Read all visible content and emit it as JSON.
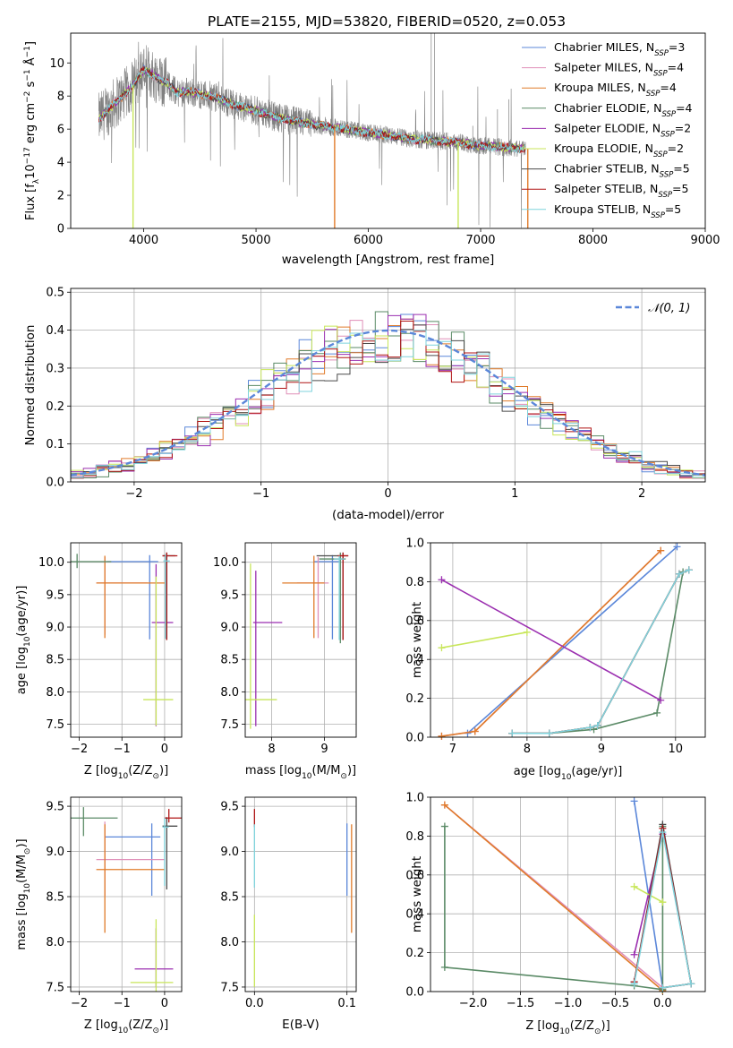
{
  "figure": {
    "title": "PLATE=2155, MJD=53820, FIBERID=0520, z=0.053"
  },
  "colors": {
    "Chabrier MILES": "#5b87d9",
    "Salpeter MILES": "#e08fb8",
    "Kroupa MILES": "#e07b2a",
    "Chabrier ELODIE": "#5a8a66",
    "Salpeter ELODIE": "#9b2fb0",
    "Kroupa ELODIE": "#c8e65a",
    "Chabrier STELIB": "#4a4a4a",
    "Salpeter STELIB": "#b01515",
    "Kroupa STELIB": "#7fd3dc",
    "data": "#808080"
  },
  "chart_data": [
    {
      "id": "spectrum",
      "type": "line",
      "xlabel": "wavelength [Angstrom, rest frame]",
      "ylabel_parts": [
        "Flux [f",
        "λ",
        "10",
        "−17",
        " erg cm",
        "−2",
        " s",
        "−1",
        " Å",
        "−1",
        "]"
      ],
      "xlim": [
        3350,
        9000
      ],
      "ylim": [
        0,
        11.8
      ],
      "xticks": [
        4000,
        5000,
        6000,
        7000,
        8000,
        9000
      ],
      "yticks": [
        0,
        2,
        4,
        6,
        8,
        10
      ],
      "grid": false,
      "legend_position": "top-right",
      "series": [
        {
          "name": "Chabrier MILES",
          "sub": "SSP",
          "n": 3
        },
        {
          "name": "Salpeter MILES",
          "sub": "SSP",
          "n": 4
        },
        {
          "name": "Kroupa MILES",
          "sub": "SSP",
          "n": 4
        },
        {
          "name": "Chabrier ELODIE",
          "sub": "SSP",
          "n": 4
        },
        {
          "name": "Salpeter ELODIE",
          "sub": "SSP",
          "n": 2
        },
        {
          "name": "Kroupa ELODIE",
          "sub": "SSP",
          "n": 2
        },
        {
          "name": "Chabrier STELIB",
          "sub": "SSP",
          "n": 5
        },
        {
          "name": "Salpeter STELIB",
          "sub": "SSP",
          "n": 5
        },
        {
          "name": "Kroupa STELIB",
          "sub": "SSP",
          "n": 5
        }
      ],
      "continuum": {
        "x": [
          3600,
          3700,
          3800,
          3900,
          4000,
          4100,
          4200,
          4300,
          4400,
          4500,
          4600,
          4800,
          5000,
          5200,
          5400,
          5600,
          5800,
          6000,
          6200,
          6400,
          6600,
          6800,
          7000,
          7200,
          7400
        ],
        "y": [
          6.6,
          7.3,
          7.9,
          8.6,
          9.6,
          9.2,
          8.8,
          8.2,
          8.3,
          8.1,
          8.0,
          7.5,
          7.1,
          6.7,
          6.4,
          6.2,
          6.0,
          5.8,
          5.6,
          5.4,
          5.3,
          5.2,
          5.0,
          4.9,
          4.8
        ]
      },
      "dropouts": [
        {
          "x": 3905,
          "series": "Kroupa ELODIE"
        },
        {
          "x": 5700,
          "series": "Kroupa MILES"
        },
        {
          "x": 6800,
          "series": "Kroupa ELODIE"
        },
        {
          "x": 7420,
          "series": "Kroupa MILES"
        }
      ]
    },
    {
      "id": "residuals",
      "type": "histogram",
      "xlabel": "(data-model)/error",
      "ylabel": "Normed distribution",
      "xlim": [
        -2.5,
        2.5
      ],
      "ylim": [
        0,
        0.51
      ],
      "xticks": [
        -2,
        -1,
        0,
        1,
        2
      ],
      "yticks": [
        0.0,
        0.1,
        0.2,
        0.3,
        0.4,
        0.5
      ],
      "grid": true,
      "legend_position": "top-right",
      "reference": {
        "name": "𝒩(0, 1)",
        "mean": 0,
        "sigma": 1
      },
      "bin_width": 0.1,
      "bin_start": -2.5
    },
    {
      "id": "age-vs-Z",
      "type": "scatter",
      "xlabel_parts": [
        "Z [log",
        "10",
        "(Z/Z",
        "⊙",
        ")]"
      ],
      "ylabel_parts": [
        "age  [log",
        "10",
        "(age/yr)]"
      ],
      "xlim": [
        -2.2,
        0.4
      ],
      "ylim": [
        7.3,
        10.3
      ],
      "xticks": [
        -2,
        -1,
        0
      ],
      "yticks": [
        7.5,
        8.0,
        8.5,
        9.0,
        9.5,
        10.0
      ],
      "grid": true,
      "points": [
        {
          "series": "Chabrier MILES",
          "x": -0.35,
          "y": 10.01,
          "xerr": [
            1.0,
            0.2
          ],
          "yerr": [
            1.2,
            0.1
          ]
        },
        {
          "series": "Salpeter MILES",
          "x": -1.4,
          "y": 9.68,
          "xerr": [
            0.2,
            1.0
          ],
          "yerr": [
            0.8,
            0.4
          ]
        },
        {
          "series": "Kroupa MILES",
          "x": -1.4,
          "y": 9.68,
          "xerr": [
            0.2,
            1.4
          ],
          "yerr": [
            0.85,
            0.42
          ]
        },
        {
          "series": "Chabrier ELODIE",
          "x": -2.05,
          "y": 10.01,
          "xerr": [
            0.2,
            0.8
          ],
          "yerr": [
            0.1,
            0.12
          ]
        },
        {
          "series": "Salpeter ELODIE",
          "x": -0.2,
          "y": 9.07,
          "xerr": [
            0.1,
            0.4
          ],
          "yerr": [
            1.6,
            0.9
          ]
        },
        {
          "series": "Kroupa ELODIE",
          "x": -0.2,
          "y": 7.88,
          "xerr": [
            0.3,
            0.4
          ],
          "yerr": [
            0.4,
            1.9
          ]
        },
        {
          "series": "Chabrier STELIB",
          "x": 0.05,
          "y": 10.1,
          "xerr": [
            0.1,
            0.2
          ],
          "yerr": [
            1.3,
            0.05
          ]
        },
        {
          "series": "Salpeter STELIB",
          "x": 0.05,
          "y": 10.1,
          "xerr": [
            0.1,
            0.25
          ],
          "yerr": [
            1.3,
            0.05
          ]
        },
        {
          "series": "Kroupa STELIB",
          "x": 0.02,
          "y": 10.02,
          "xerr": [
            0.05,
            0.1
          ],
          "yerr": [
            1.2,
            0.1
          ]
        }
      ]
    },
    {
      "id": "age-vs-mass",
      "type": "scatter",
      "xlabel_parts": [
        "mass [log",
        "10",
        "(M/M",
        "⊙",
        ")]"
      ],
      "xlim": [
        7.5,
        9.6
      ],
      "ylim": [
        7.3,
        10.3
      ],
      "xticks": [
        8,
        9
      ],
      "yticks": [
        7.5,
        8.0,
        8.5,
        9.0,
        9.5,
        10.0
      ],
      "grid": true,
      "points": [
        {
          "series": "Chabrier MILES",
          "x": 9.15,
          "y": 10.01,
          "xerr": [
            0.35,
            0.15
          ],
          "yerr": [
            1.2,
            0.1
          ]
        },
        {
          "series": "Salpeter MILES",
          "x": 8.88,
          "y": 9.68,
          "xerr": [
            0.4,
            0.2
          ],
          "yerr": [
            0.85,
            0.4
          ]
        },
        {
          "series": "Kroupa MILES",
          "x": 8.8,
          "y": 9.68,
          "xerr": [
            0.6,
            0.2
          ],
          "yerr": [
            0.85,
            0.42
          ]
        },
        {
          "series": "Chabrier ELODIE",
          "x": 9.3,
          "y": 10.05,
          "xerr": [
            0.4,
            0.1
          ],
          "yerr": [
            1.3,
            0.1
          ]
        },
        {
          "series": "Salpeter ELODIE",
          "x": 7.7,
          "y": 9.07,
          "xerr": [
            0.05,
            0.5
          ],
          "yerr": [
            1.6,
            0.8
          ]
        },
        {
          "series": "Kroupa ELODIE",
          "x": 7.6,
          "y": 7.88,
          "xerr": [
            0.1,
            0.5
          ],
          "yerr": [
            0.45,
            2.1
          ]
        },
        {
          "series": "Chabrier STELIB",
          "x": 9.35,
          "y": 10.1,
          "xerr": [
            0.5,
            0.1
          ],
          "yerr": [
            1.3,
            0.05
          ]
        },
        {
          "series": "Salpeter STELIB",
          "x": 9.35,
          "y": 10.1,
          "xerr": [
            0.1,
            0.1
          ],
          "yerr": [
            1.3,
            0.05
          ]
        },
        {
          "series": "Kroupa STELIB",
          "x": 9.28,
          "y": 10.05,
          "xerr": [
            0.1,
            0.1
          ],
          "yerr": [
            1.25,
            0.05
          ]
        }
      ]
    },
    {
      "id": "weight-vs-age",
      "type": "line",
      "xlabel_parts": [
        "age  [log",
        "10",
        "(age/yr)]"
      ],
      "ylabel": "mass weight",
      "xlim": [
        6.7,
        10.4
      ],
      "ylim": [
        0,
        1.0
      ],
      "xticks": [
        7,
        8,
        9,
        10
      ],
      "yticks": [
        0.0,
        0.2,
        0.4,
        0.6,
        0.8,
        1.0
      ],
      "grid": true,
      "series": [
        {
          "name": "Chabrier MILES",
          "x": [
            7.2,
            10.02
          ],
          "y": [
            0.02,
            0.98
          ]
        },
        {
          "name": "Salpeter MILES",
          "x": [
            6.85,
            7.3,
            9.8
          ],
          "y": [
            0.005,
            0.03,
            0.96
          ]
        },
        {
          "name": "Kroupa MILES",
          "x": [
            6.85,
            7.3,
            9.8
          ],
          "y": [
            0.005,
            0.03,
            0.96
          ]
        },
        {
          "name": "Chabrier ELODIE",
          "x": [
            7.8,
            8.3,
            8.9,
            9.75,
            10.1
          ],
          "y": [
            0.02,
            0.02,
            0.04,
            0.125,
            0.85
          ]
        },
        {
          "name": "Salpeter ELODIE",
          "x": [
            6.85,
            9.8
          ],
          "y": [
            0.81,
            0.19
          ]
        },
        {
          "name": "Kroupa ELODIE",
          "x": [
            6.85,
            8.0
          ],
          "y": [
            0.46,
            0.54
          ]
        },
        {
          "name": "Chabrier STELIB",
          "x": [
            7.8,
            8.3,
            8.85,
            8.95,
            10.05,
            10.18
          ],
          "y": [
            0.02,
            0.02,
            0.05,
            0.06,
            0.84,
            0.86
          ]
        },
        {
          "name": "Salpeter STELIB",
          "x": [
            7.8,
            8.3,
            8.85,
            8.95,
            10.05,
            10.18
          ],
          "y": [
            0.02,
            0.02,
            0.05,
            0.06,
            0.84,
            0.86
          ]
        },
        {
          "name": "Kroupa STELIB",
          "x": [
            7.8,
            8.3,
            8.85,
            8.95,
            10.05,
            10.18
          ],
          "y": [
            0.02,
            0.02,
            0.05,
            0.06,
            0.84,
            0.86
          ]
        }
      ]
    },
    {
      "id": "mass-vs-Z",
      "type": "scatter",
      "xlabel_parts": [
        "Z [log",
        "10",
        "(Z/Z",
        "⊙",
        ")]"
      ],
      "ylabel_parts": [
        "mass [log",
        "10",
        "(M/M",
        "⊙",
        ")]"
      ],
      "xlim": [
        -2.2,
        0.4
      ],
      "ylim": [
        7.45,
        9.6
      ],
      "xticks": [
        -2,
        -1,
        0
      ],
      "yticks": [
        7.5,
        8.0,
        8.5,
        9.0,
        9.5
      ],
      "grid": true,
      "points": [
        {
          "series": "Chabrier MILES",
          "x": -0.3,
          "y": 9.16,
          "xerr": [
            1.1,
            0.2
          ],
          "yerr": [
            0.65,
            0.15
          ]
        },
        {
          "series": "Salpeter MILES",
          "x": -1.4,
          "y": 8.91,
          "xerr": [
            0.2,
            1.4
          ],
          "yerr": [
            0.4,
            0.42
          ]
        },
        {
          "series": "Kroupa MILES",
          "x": -1.4,
          "y": 8.8,
          "xerr": [
            0.2,
            1.4
          ],
          "yerr": [
            0.7,
            0.5
          ]
        },
        {
          "series": "Chabrier ELODIE",
          "x": -1.9,
          "y": 9.37,
          "xerr": [
            0.3,
            0.8
          ],
          "yerr": [
            0.2,
            0.12
          ]
        },
        {
          "series": "Salpeter ELODIE",
          "x": -0.2,
          "y": 7.7,
          "xerr": [
            0.5,
            0.4
          ],
          "yerr": [
            0.2,
            0.45
          ]
        },
        {
          "series": "Kroupa ELODIE",
          "x": -0.2,
          "y": 7.55,
          "xerr": [
            0.6,
            0.4
          ],
          "yerr": [
            0.1,
            0.7
          ]
        },
        {
          "series": "Chabrier STELIB",
          "x": 0.05,
          "y": 9.28,
          "xerr": [
            0.1,
            0.25
          ],
          "yerr": [
            0.7,
            0.1
          ]
        },
        {
          "series": "Salpeter STELIB",
          "x": 0.1,
          "y": 9.37,
          "xerr": [
            0.1,
            0.3
          ],
          "yerr": [
            0.05,
            0.1
          ]
        },
        {
          "series": "Kroupa STELIB",
          "x": 0.0,
          "y": 9.27,
          "xerr": [
            0.05,
            0.1
          ],
          "yerr": [
            0.65,
            0.1
          ]
        }
      ]
    },
    {
      "id": "mass-vs-EBV",
      "type": "scatter",
      "xlabel": "E(B-V)",
      "xlim": [
        -0.01,
        0.11
      ],
      "ylim": [
        7.45,
        9.6
      ],
      "xticks": [
        0.0,
        0.1
      ],
      "yticks": [
        7.5,
        8.0,
        8.5,
        9.0,
        9.5
      ],
      "grid": true,
      "points": [
        {
          "series": "Chabrier MILES",
          "x": 0.1,
          "y": 9.16,
          "xerr": [
            0,
            0
          ],
          "yerr": [
            0.65,
            0.15
          ]
        },
        {
          "series": "Kroupa MILES",
          "x": 0.105,
          "y": 8.8,
          "xerr": [
            0,
            0
          ],
          "yerr": [
            0.7,
            0.5
          ]
        },
        {
          "series": "Kroupa ELODIE",
          "x": 0.0,
          "y": 7.9,
          "xerr": [
            0,
            0
          ],
          "yerr": [
            0.4,
            0.4
          ]
        },
        {
          "series": "Salpeter STELIB",
          "x": 0.0,
          "y": 9.37,
          "xerr": [
            0,
            0
          ],
          "yerr": [
            0.1,
            0.1
          ]
        },
        {
          "series": "Kroupa STELIB",
          "x": 0.0,
          "y": 9.2,
          "xerr": [
            0,
            0
          ],
          "yerr": [
            0.6,
            0.1
          ]
        }
      ]
    },
    {
      "id": "weight-vs-Z",
      "type": "line",
      "xlabel_parts": [
        "Z [log",
        "10",
        "(Z/Z",
        "⊙",
        ")]"
      ],
      "ylabel": "mass weight",
      "xlim": [
        -2.45,
        0.45
      ],
      "ylim": [
        0,
        1.0
      ],
      "xticks": [
        -2.0,
        -1.5,
        -1.0,
        -0.5,
        0.0
      ],
      "ytickvals": [
        0.0,
        0.2,
        0.4,
        0.6,
        0.8,
        1.0
      ],
      "grid": true,
      "series": [
        {
          "name": "Chabrier MILES",
          "x": [
            -0.3,
            0.0
          ],
          "y": [
            0.98,
            0.02
          ]
        },
        {
          "name": "Salpeter MILES",
          "x": [
            -2.3,
            0.0
          ],
          "y": [
            0.96,
            0.02
          ]
        },
        {
          "name": "Kroupa MILES",
          "x": [
            -2.3,
            0.0
          ],
          "y": [
            0.96,
            0.005
          ]
        },
        {
          "name": "Chabrier ELODIE",
          "x": [
            -2.3,
            -2.3,
            -0.3,
            0.0,
            0.0
          ],
          "y": [
            0.85,
            0.125,
            0.03,
            0.01,
            0.85
          ]
        },
        {
          "name": "Salpeter ELODIE",
          "x": [
            -0.3,
            0.0
          ],
          "y": [
            0.19,
            0.81
          ]
        },
        {
          "name": "Kroupa ELODIE",
          "x": [
            -0.3,
            0.0
          ],
          "y": [
            0.54,
            0.46
          ]
        },
        {
          "name": "Chabrier STELIB",
          "x": [
            -0.3,
            0.0,
            0.3,
            0.0
          ],
          "y": [
            0.05,
            0.86,
            0.04,
            0.02
          ]
        },
        {
          "name": "Salpeter STELIB",
          "x": [
            -0.3,
            0.0,
            0.3,
            0.0
          ],
          "y": [
            0.05,
            0.84,
            0.04,
            0.02
          ]
        },
        {
          "name": "Kroupa STELIB",
          "x": [
            -0.3,
            0.0,
            0.3,
            0.0
          ],
          "y": [
            0.04,
            0.82,
            0.04,
            0.02
          ]
        }
      ]
    }
  ]
}
